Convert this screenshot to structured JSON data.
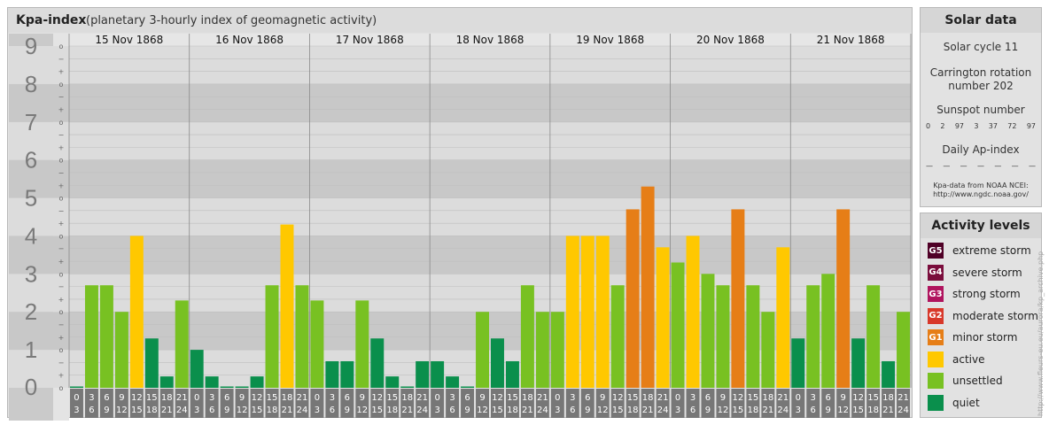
{
  "title": {
    "main": "Kpa-index",
    "sub": "(planetary 3-hourly index of geomagnetic activity)"
  },
  "chart_data": {
    "type": "bar",
    "ylim": [
      0,
      9
    ],
    "y_ticks": [
      "0",
      "1",
      "2",
      "3",
      "4",
      "5",
      "6",
      "7",
      "8",
      "9"
    ],
    "sub_tick_labels": [
      "o",
      "+",
      "−"
    ],
    "days": [
      "15 Nov 1868",
      "16 Nov 1868",
      "17 Nov 1868",
      "18 Nov 1868",
      "19 Nov 1868",
      "20 Nov 1868",
      "21 Nov 1868"
    ],
    "interval_top": [
      "0",
      "3",
      "6",
      "9",
      "12",
      "15",
      "18",
      "21"
    ],
    "interval_bottom": [
      "3",
      "6",
      "9",
      "12",
      "15",
      "18",
      "21",
      "24"
    ],
    "values": [
      [
        0.0,
        2.7,
        2.7,
        2.0,
        4.0,
        1.3,
        0.3,
        2.3
      ],
      [
        1.0,
        0.3,
        0.0,
        0.0,
        0.3,
        2.7,
        4.3,
        2.7
      ],
      [
        2.3,
        0.7,
        0.7,
        2.3,
        1.3,
        0.3,
        0.0,
        0.7
      ],
      [
        0.7,
        0.3,
        0.0,
        2.0,
        1.3,
        0.7,
        2.7,
        2.0
      ],
      [
        2.0,
        4.0,
        4.0,
        4.0,
        2.7,
        4.7,
        5.3,
        3.7
      ],
      [
        3.3,
        4.0,
        3.0,
        2.7,
        4.7,
        2.7,
        2.0,
        3.7
      ],
      [
        1.3,
        2.7,
        3.0,
        4.7,
        1.3,
        2.7,
        0.7,
        2.0
      ]
    ],
    "colors": {
      "quiet": "#0a8f4c",
      "unsettled": "#78c122",
      "active": "#ffc800",
      "minor": "#e67e17",
      "band_dark": "#c8c8c8",
      "band_light": "#dcdcdc",
      "axis_bg": "#cacaca",
      "tick_text": "#7a7a7a",
      "interval_bg": "#777777"
    }
  },
  "solar": {
    "header": "Solar data",
    "cycle": "Solar cycle 11",
    "carrington_1": "Carrington rotation",
    "carrington_2": "number 202",
    "sunspot_label": "Sunspot number",
    "sunspots": [
      "0",
      "2",
      "97",
      "3",
      "37",
      "72",
      "97"
    ],
    "ap_label": "Daily Ap-index",
    "ap_values": [
      "—",
      "—",
      "—",
      "—",
      "—",
      "—",
      "—"
    ],
    "source_1": "Kpa-data from NOAA NCEI:",
    "source_2": "http://www.ngdc.noaa.gov/"
  },
  "levels": {
    "header": "Activity levels",
    "items": [
      {
        "code": "G5",
        "label": "extreme storm",
        "color": "#4f0026"
      },
      {
        "code": "G4",
        "label": "severe storm",
        "color": "#7a0d3c"
      },
      {
        "code": "G3",
        "label": "strong storm",
        "color": "#b0145e"
      },
      {
        "code": "G2",
        "label": "moderate storm",
        "color": "#d8382a"
      },
      {
        "code": "G1",
        "label": "minor storm",
        "color": "#e67e17"
      },
      {
        "code": "",
        "label": "active",
        "color": "#ffc800"
      },
      {
        "code": "",
        "label": "unsettled",
        "color": "#78c122"
      },
      {
        "code": "",
        "label": "quiet",
        "color": "#0a8f4c"
      }
    ]
  },
  "footer_url": "http://www.fleurs-eu.eu/aurora/kp_archive.php"
}
